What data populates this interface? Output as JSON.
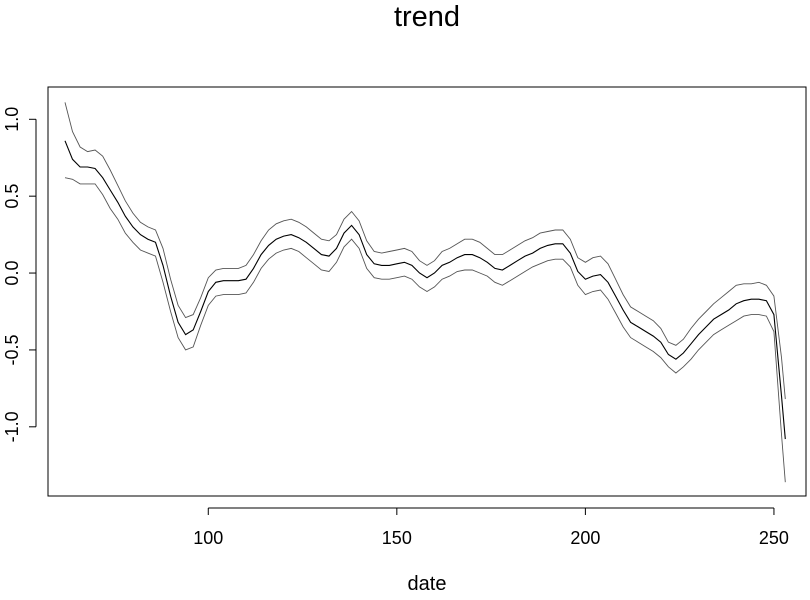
{
  "chart_data": {
    "type": "line",
    "title": "trend",
    "xlabel": "date",
    "ylabel": "",
    "xlim": [
      57.5,
      258.5
    ],
    "ylim": [
      -1.45,
      1.21
    ],
    "xticks": [
      100,
      150,
      200,
      250
    ],
    "yticks": [
      -1.0,
      -0.5,
      0.0,
      0.5,
      1.0
    ],
    "xtick_labels": [
      "100",
      "150",
      "200",
      "250"
    ],
    "ytick_labels": [
      "-1.0",
      "-0.5",
      "0.0",
      "0.5",
      "1.0"
    ],
    "grid": false,
    "legend": "none",
    "colors": {
      "main": "#000000",
      "band": "#555555"
    },
    "x": [
      62,
      64,
      66,
      68,
      70,
      72,
      74,
      76,
      78,
      80,
      82,
      84,
      86,
      88,
      90,
      92,
      94,
      96,
      98,
      100,
      102,
      104,
      106,
      108,
      110,
      112,
      114,
      116,
      118,
      120,
      122,
      124,
      126,
      128,
      130,
      132,
      134,
      136,
      138,
      140,
      142,
      144,
      146,
      148,
      150,
      152,
      154,
      156,
      158,
      160,
      162,
      164,
      166,
      168,
      170,
      172,
      174,
      176,
      178,
      180,
      182,
      184,
      186,
      188,
      190,
      192,
      194,
      196,
      198,
      200,
      202,
      204,
      206,
      208,
      210,
      212,
      214,
      216,
      218,
      220,
      222,
      224,
      226,
      228,
      230,
      232,
      234,
      236,
      238,
      240,
      242,
      244,
      246,
      248,
      250,
      252,
      253
    ],
    "series": [
      {
        "name": "",
        "values": [
          0.86,
          0.74,
          0.69,
          0.69,
          0.68,
          0.62,
          0.54,
          0.46,
          0.37,
          0.3,
          0.25,
          0.22,
          0.2,
          0.05,
          -0.15,
          -0.32,
          -0.4,
          -0.37,
          -0.25,
          -0.12,
          -0.06,
          -0.05,
          -0.05,
          -0.05,
          -0.04,
          0.03,
          0.12,
          0.18,
          0.22,
          0.24,
          0.25,
          0.23,
          0.2,
          0.16,
          0.12,
          0.11,
          0.16,
          0.26,
          0.31,
          0.25,
          0.12,
          0.06,
          0.05,
          0.05,
          0.06,
          0.07,
          0.05,
          0.0,
          -0.03,
          0.0,
          0.05,
          0.07,
          0.1,
          0.12,
          0.12,
          0.1,
          0.07,
          0.03,
          0.02,
          0.05,
          0.08,
          0.11,
          0.13,
          0.16,
          0.18,
          0.19,
          0.19,
          0.13,
          0.01,
          -0.04,
          -0.02,
          -0.01,
          -0.06,
          -0.15,
          -0.24,
          -0.32,
          -0.35,
          -0.38,
          -0.41,
          -0.45,
          -0.53,
          -0.56,
          -0.52,
          -0.46,
          -0.4,
          -0.35,
          -0.3,
          -0.27,
          -0.24,
          -0.2,
          -0.18,
          -0.17,
          -0.17,
          -0.18,
          -0.27,
          -0.8,
          -1.08
        ]
      },
      {
        "name": "",
        "values": [
          1.11,
          0.92,
          0.82,
          0.79,
          0.8,
          0.76,
          0.67,
          0.57,
          0.47,
          0.39,
          0.33,
          0.3,
          0.28,
          0.16,
          -0.04,
          -0.21,
          -0.29,
          -0.27,
          -0.16,
          -0.03,
          0.02,
          0.03,
          0.03,
          0.03,
          0.05,
          0.12,
          0.21,
          0.28,
          0.32,
          0.34,
          0.35,
          0.33,
          0.3,
          0.26,
          0.22,
          0.21,
          0.25,
          0.35,
          0.4,
          0.34,
          0.21,
          0.14,
          0.13,
          0.14,
          0.15,
          0.16,
          0.14,
          0.08,
          0.05,
          0.08,
          0.14,
          0.16,
          0.19,
          0.22,
          0.22,
          0.2,
          0.16,
          0.12,
          0.12,
          0.15,
          0.18,
          0.21,
          0.23,
          0.26,
          0.27,
          0.28,
          0.28,
          0.22,
          0.1,
          0.07,
          0.1,
          0.11,
          0.06,
          -0.04,
          -0.14,
          -0.22,
          -0.25,
          -0.28,
          -0.31,
          -0.36,
          -0.45,
          -0.47,
          -0.43,
          -0.36,
          -0.3,
          -0.25,
          -0.2,
          -0.16,
          -0.12,
          -0.08,
          -0.07,
          -0.07,
          -0.06,
          -0.08,
          -0.15,
          -0.55,
          -0.82
        ]
      },
      {
        "name": "",
        "values": [
          0.62,
          0.61,
          0.58,
          0.58,
          0.58,
          0.51,
          0.42,
          0.35,
          0.26,
          0.2,
          0.15,
          0.13,
          0.11,
          -0.06,
          -0.25,
          -0.42,
          -0.5,
          -0.48,
          -0.34,
          -0.21,
          -0.15,
          -0.14,
          -0.14,
          -0.14,
          -0.13,
          -0.06,
          0.03,
          0.09,
          0.13,
          0.15,
          0.16,
          0.14,
          0.1,
          0.06,
          0.02,
          0.01,
          0.07,
          0.17,
          0.22,
          0.16,
          0.03,
          -0.03,
          -0.04,
          -0.04,
          -0.03,
          -0.02,
          -0.04,
          -0.09,
          -0.12,
          -0.09,
          -0.04,
          -0.02,
          0.01,
          0.02,
          0.02,
          0.0,
          -0.02,
          -0.06,
          -0.08,
          -0.05,
          -0.02,
          0.01,
          0.04,
          0.06,
          0.08,
          0.09,
          0.09,
          0.04,
          -0.08,
          -0.14,
          -0.12,
          -0.11,
          -0.17,
          -0.26,
          -0.35,
          -0.42,
          -0.45,
          -0.48,
          -0.51,
          -0.55,
          -0.61,
          -0.65,
          -0.61,
          -0.56,
          -0.5,
          -0.45,
          -0.4,
          -0.37,
          -0.34,
          -0.31,
          -0.28,
          -0.27,
          -0.27,
          -0.28,
          -0.38,
          -1.05,
          -1.36
        ]
      }
    ]
  }
}
